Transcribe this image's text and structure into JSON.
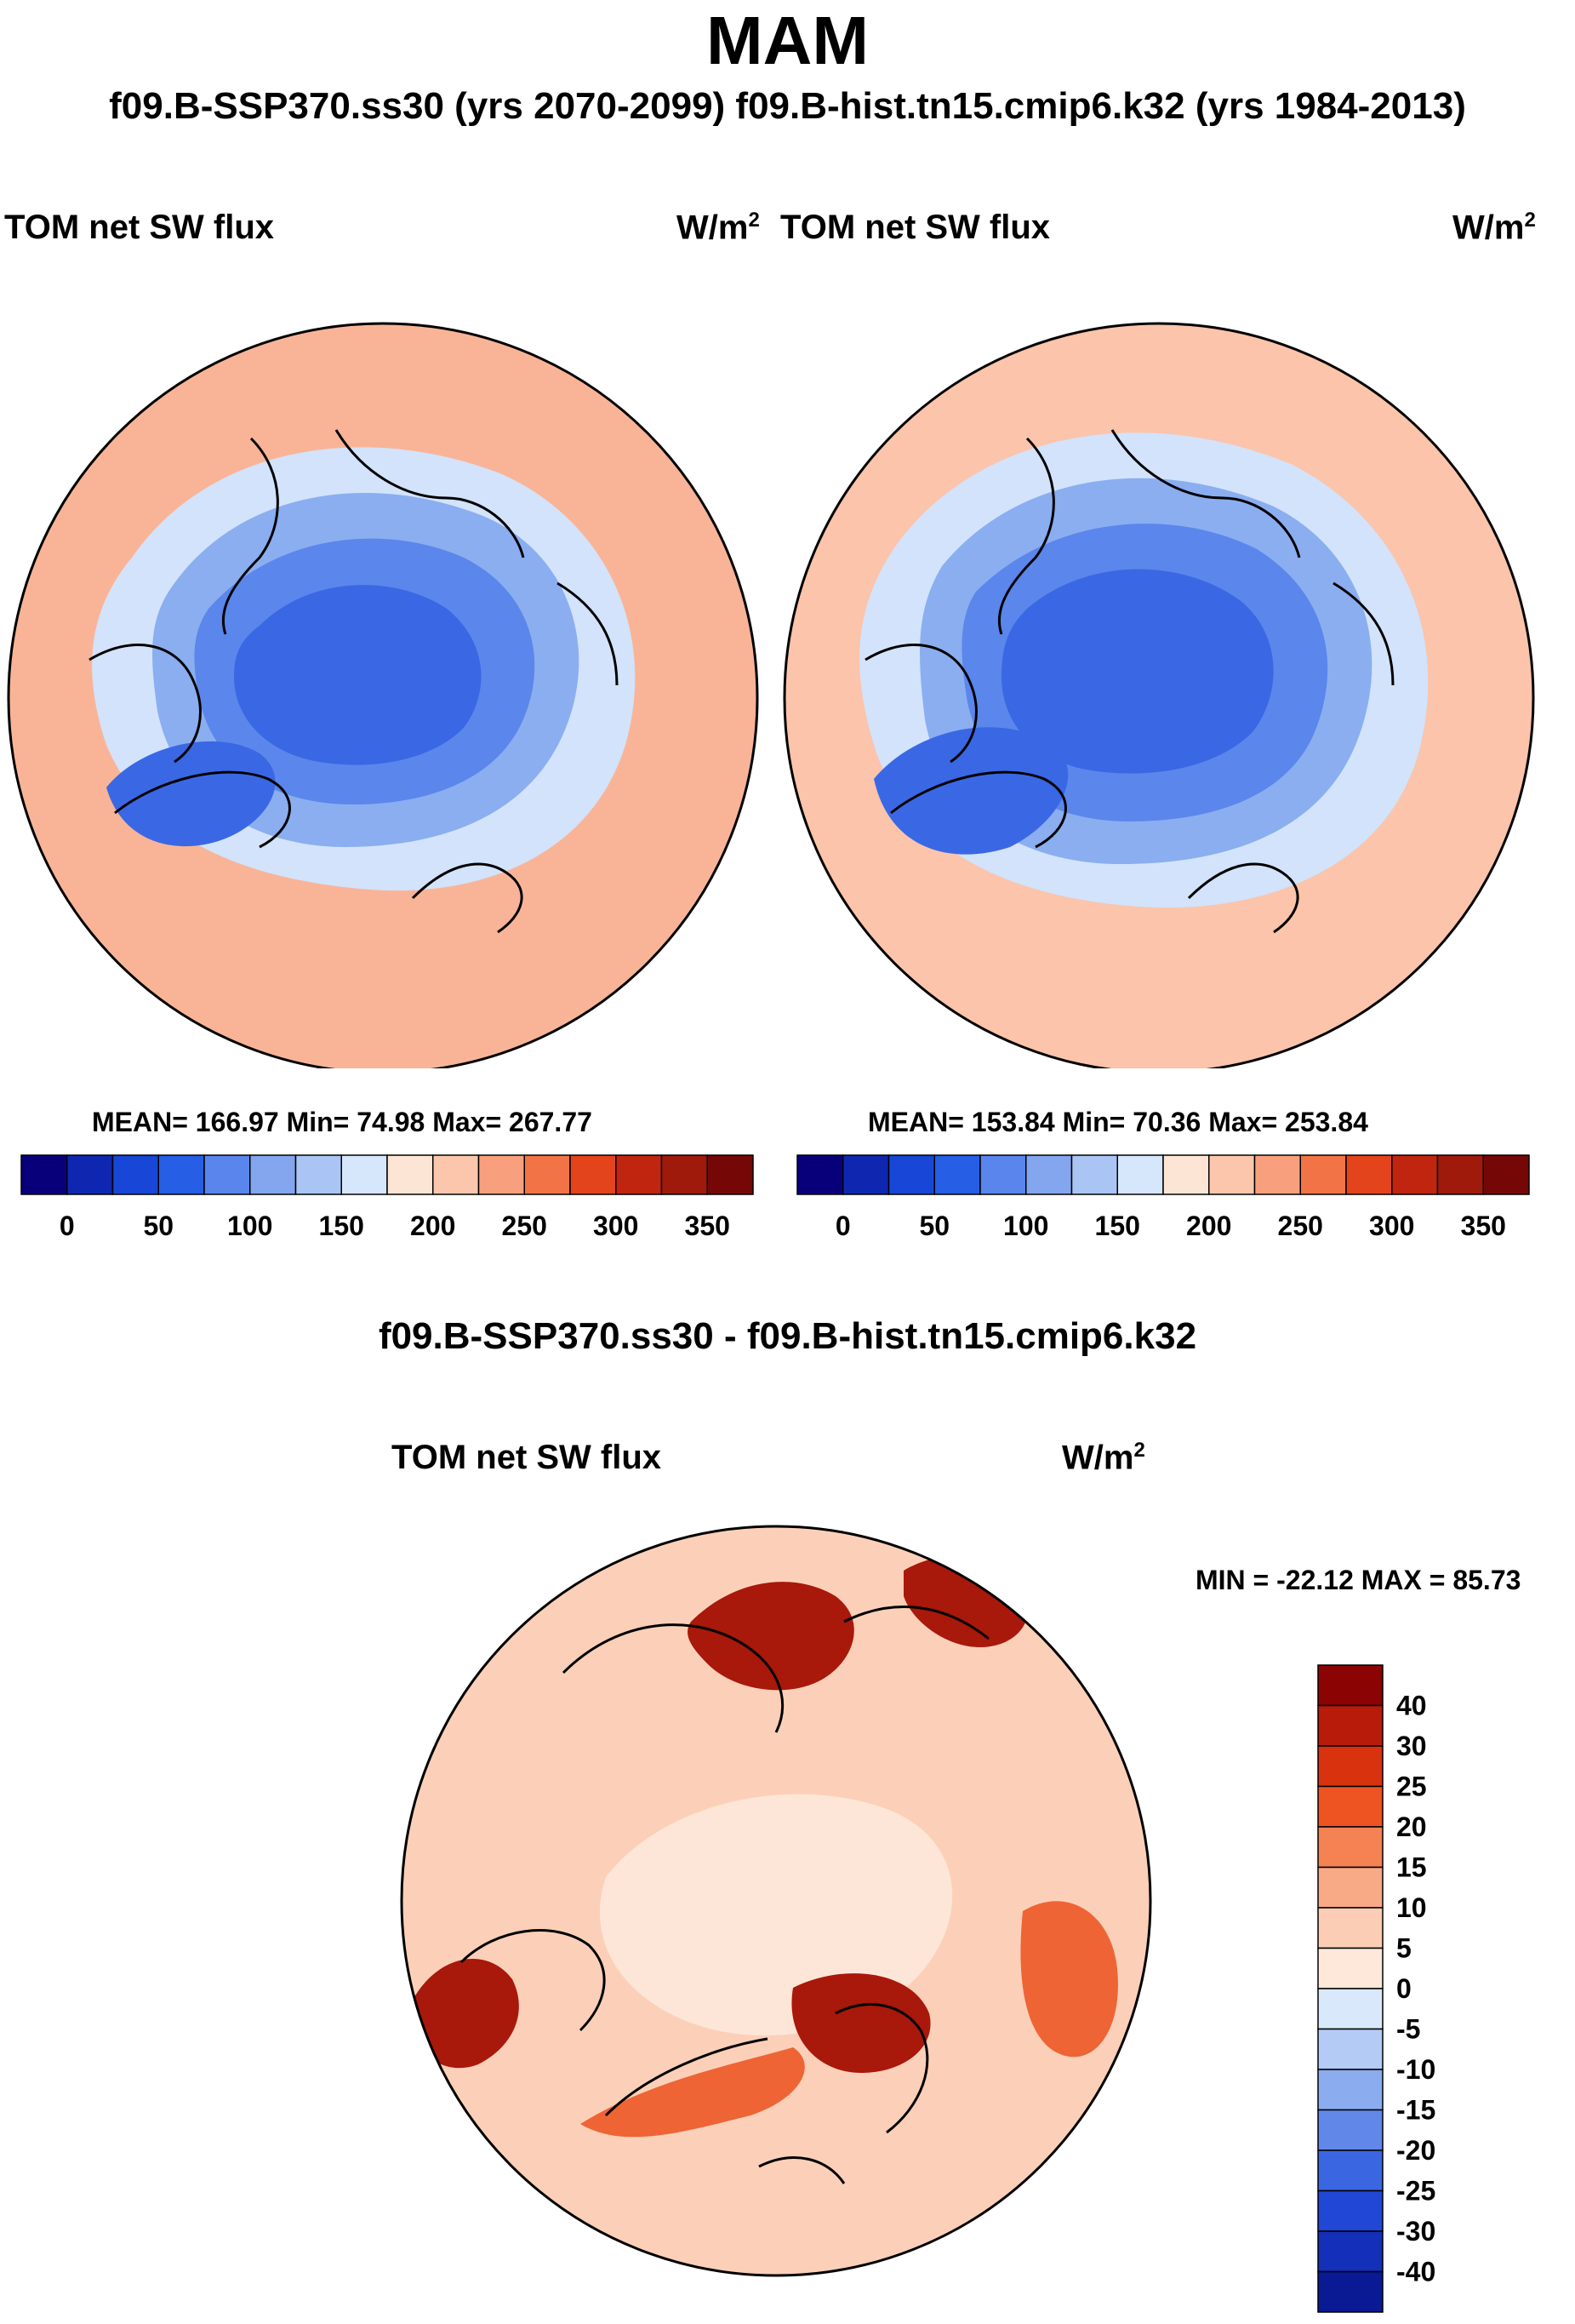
{
  "season": "MAM",
  "case_title": "f09.B-SSP370.ss30 (yrs 2070-2099)  f09.B-hist.tn15.cmip6.k32 (yrs 1984-2013)",
  "panels": [
    {
      "variable": "TOM net SW flux",
      "units_base": "W/m",
      "units_exp": "2",
      "stats": "MEAN= 166.97  Min=  74.98  Max= 267.77"
    },
    {
      "variable": "TOM net SW flux",
      "units_base": "W/m",
      "units_exp": "2",
      "stats": "MEAN= 153.84  Min=  70.36  Max= 253.84"
    }
  ],
  "colorbar_top": {
    "colors": [
      "#08007a",
      "#0f27b0",
      "#1846d6",
      "#275ee6",
      "#5a85ec",
      "#84a6ef",
      "#aac4f4",
      "#d6e6fb",
      "#fde5d5",
      "#fcc6ac",
      "#f8a07d",
      "#f27446",
      "#e3441c",
      "#c02510",
      "#a01a0c",
      "#760707"
    ],
    "tick_labels": [
      "0",
      "50",
      "100",
      "150",
      "200",
      "250",
      "300",
      "350"
    ]
  },
  "diff": {
    "title": "f09.B-SSP370.ss30 - f09.B-hist.tn15.cmip6.k32",
    "variable": "TOM net SW flux",
    "units_base": "W/m",
    "units_exp": "2",
    "minmax": "MIN = -22.12 MAX =  85.73",
    "colorbar": {
      "colors": [
        "#8c0303",
        "#b81b0a",
        "#d8320e",
        "#ed5422",
        "#f48253",
        "#f8a985",
        "#fbcdb4",
        "#fde8da",
        "#d9e9fb",
        "#b3cbf5",
        "#8bacef",
        "#6188e9",
        "#3b66e2",
        "#2147d6",
        "#1430b8",
        "#0a1994"
      ],
      "tick_labels": [
        "40",
        "30",
        "25",
        "20",
        "15",
        "10",
        "5",
        "0",
        "-5",
        "-10",
        "-15",
        "-20",
        "-25",
        "-30",
        "-40"
      ]
    }
  },
  "map_colors": {
    "outer_left": "#f9b497",
    "outer_right": "#fbc4ab",
    "ice_dark": "#3a68e4",
    "ice_mid": "#5b86eb",
    "ice_light": "#8aaef0",
    "ice_pale": "#d2e3fb",
    "diff_base": "#fcd0b8",
    "diff_strong": "#a8180b",
    "diff_mid": "#ee6435",
    "diff_pale": "#fde6d7"
  }
}
